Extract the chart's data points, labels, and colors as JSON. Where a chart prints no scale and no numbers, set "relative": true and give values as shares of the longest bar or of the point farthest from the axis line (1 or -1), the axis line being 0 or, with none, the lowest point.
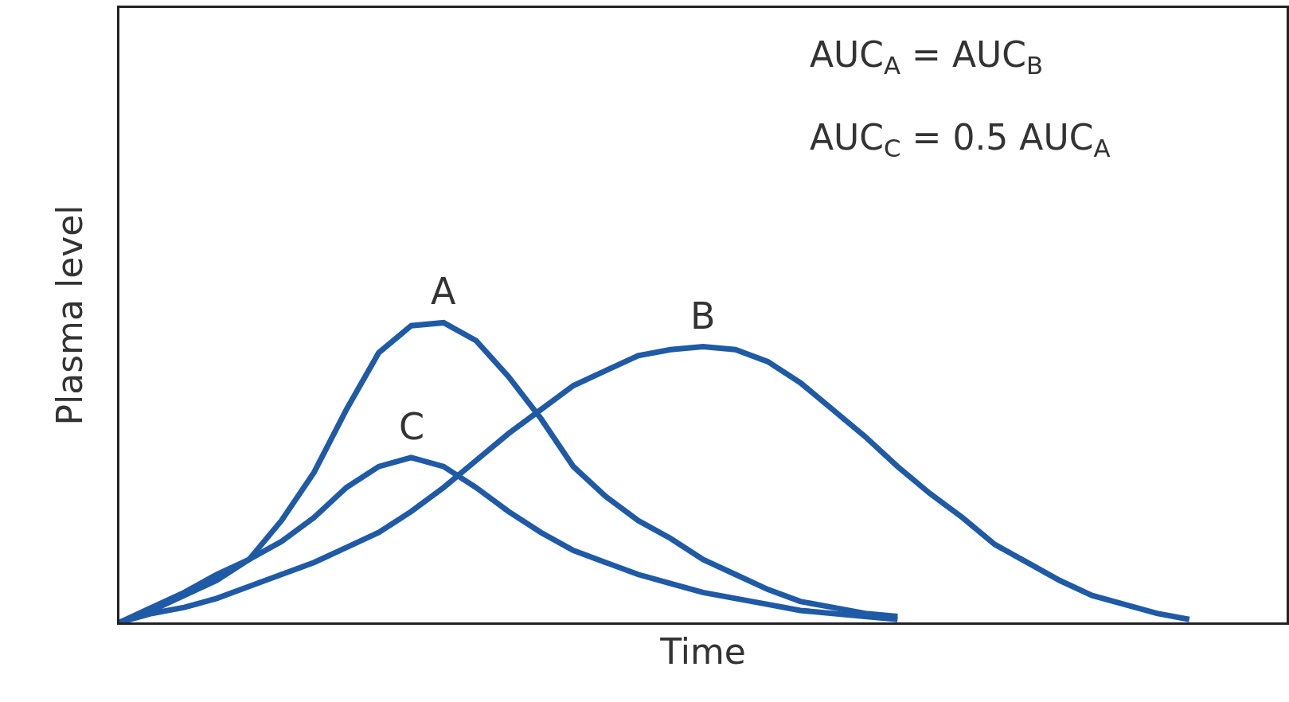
{
  "chart_data": {
    "type": "line",
    "relative": true,
    "xlabel": "Time",
    "ylabel": "Plasma level",
    "legend": false,
    "grid": false,
    "marker": "none",
    "line_style": "solid",
    "categories": [
      null,
      null,
      null,
      null,
      null,
      null,
      null,
      null,
      null,
      null,
      null,
      null,
      null,
      null,
      null,
      null,
      null,
      null,
      null,
      null,
      null,
      null,
      null,
      null,
      null,
      null,
      null,
      null,
      null,
      null,
      null,
      null,
      null,
      null,
      null,
      null,
      null
    ],
    "series": [
      {
        "name": "A",
        "color": "#1f5aa6",
        "values": [
          0,
          0.04,
          0.09,
          0.14,
          0.21,
          0.34,
          0.5,
          0.71,
          0.9,
          0.99,
          1,
          0.94,
          0.82,
          0.68,
          0.52,
          0.42,
          0.34,
          0.28,
          0.21,
          0.16,
          0.11,
          0.07,
          0.05,
          0.03,
          0.02,
          null,
          null,
          null,
          null,
          null,
          null,
          null,
          null,
          null,
          null,
          null,
          null
        ]
      },
      {
        "name": "B",
        "color": "#1f5aa6",
        "values": [
          0,
          0.03,
          0.05,
          0.08,
          0.12,
          0.16,
          0.2,
          0.25,
          0.3,
          0.37,
          0.45,
          0.54,
          0.63,
          0.71,
          0.79,
          0.84,
          0.89,
          0.91,
          0.92,
          0.91,
          0.87,
          0.8,
          0.71,
          0.62,
          0.52,
          0.43,
          0.35,
          0.26,
          0.2,
          0.14,
          0.09,
          0.06,
          0.03,
          0.01,
          null,
          null,
          null
        ]
      },
      {
        "name": "C",
        "color": "#1f5aa6",
        "values": [
          0,
          0.05,
          0.1,
          0.16,
          0.21,
          0.27,
          0.35,
          0.45,
          0.52,
          0.55,
          0.52,
          0.45,
          0.37,
          0.3,
          0.24,
          0.2,
          0.16,
          0.13,
          0.1,
          0.08,
          0.06,
          0.04,
          0.03,
          0.02,
          0.01,
          null,
          null,
          null,
          null,
          null,
          null,
          null,
          null,
          null,
          null,
          null,
          null
        ]
      }
    ],
    "annotations": [
      "AUC$_{A}$ = AUC$_{B}$",
      "AUC$_{C}$ = 0.5 AUC$_{A}$"
    ]
  }
}
